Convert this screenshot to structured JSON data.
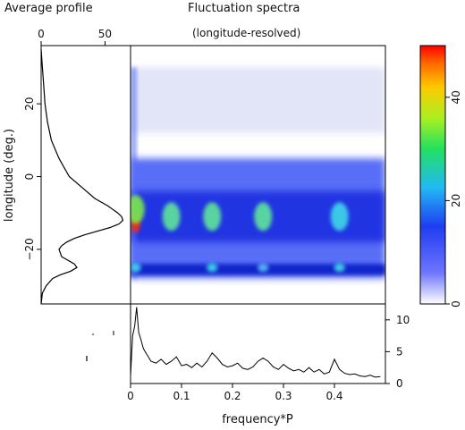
{
  "titles": {
    "profile_panel": "Average profile",
    "spectra_panel": "Fluctuation spectra",
    "spectra_subtitle": "(longitude-resolved)"
  },
  "chart_data": [
    {
      "type": "line",
      "name": "average-profile",
      "orientation": "vertical",
      "title": "Average profile",
      "xlabel": "",
      "ylabel": "longitude (deg.)",
      "xlim": [
        0,
        70
      ],
      "ylim": [
        -35,
        36
      ],
      "x_ticks": [
        "0",
        "50"
      ],
      "y_ticks": [
        "20",
        "0",
        "−20"
      ],
      "x_tick_values": [
        0,
        50
      ],
      "y_tick_values": [
        20,
        0,
        -20
      ],
      "points": {
        "longitude": [
          35,
          30,
          25,
          20,
          15,
          10,
          5,
          0,
          -3,
          -6,
          -8,
          -10,
          -11,
          -12,
          -13,
          -14,
          -15,
          -16,
          -17,
          -18,
          -19,
          -20,
          -22,
          -24,
          -25,
          -26,
          -27,
          -28,
          -30,
          -32,
          -35
        ],
        "intensity": [
          0,
          1,
          2,
          3,
          5,
          8,
          14,
          22,
          32,
          42,
          52,
          60,
          63,
          64,
          61,
          54,
          44,
          34,
          26,
          20,
          16,
          14,
          16,
          26,
          28,
          23,
          15,
          9,
          4,
          1,
          0
        ]
      }
    },
    {
      "type": "heatmap",
      "name": "fluctuation-spectra",
      "title": "Fluctuation spectra",
      "subtitle": "(longitude-resolved)",
      "xlabel": "frequency*P",
      "ylabel": "longitude (deg.)",
      "xlim": [
        0,
        0.5
      ],
      "ylim": [
        -35,
        36
      ],
      "colorbar": {
        "min": 0,
        "max": 50,
        "ticks": [
          "0",
          "20",
          "40"
        ],
        "tick_values": [
          0,
          20,
          40
        ]
      },
      "features": [
        {
          "f": 0.01,
          "lon": -13,
          "value": 50
        },
        {
          "f": 0.01,
          "lon": -9,
          "value": 30
        },
        {
          "f": 0.08,
          "lon": -11,
          "value": 22
        },
        {
          "f": 0.16,
          "lon": -11,
          "value": 22
        },
        {
          "f": 0.26,
          "lon": -11,
          "value": 24
        },
        {
          "f": 0.41,
          "lon": -11,
          "value": 18
        },
        {
          "f": 0.01,
          "lon": -25,
          "value": 18
        },
        {
          "f": 0.16,
          "lon": -25,
          "value": 15
        },
        {
          "f": 0.26,
          "lon": -25,
          "value": 14
        },
        {
          "f": 0.41,
          "lon": -25,
          "value": 15
        }
      ],
      "band_lat_min": -28,
      "band_lat_max": 5
    },
    {
      "type": "line",
      "name": "integrated-spectrum",
      "xlabel": "frequency*P",
      "ylabel": "",
      "xlim": [
        0,
        0.5
      ],
      "ylim": [
        0,
        12.5
      ],
      "x_ticks": [
        "0",
        "0.1",
        "0.2",
        "0.3",
        "0.4"
      ],
      "x_tick_values": [
        0,
        0.1,
        0.2,
        0.3,
        0.4
      ],
      "y_ticks": [
        "0",
        "5",
        "10"
      ],
      "y_tick_values": [
        0,
        5,
        10
      ],
      "x": [
        0.0,
        0.004,
        0.008,
        0.012,
        0.016,
        0.02,
        0.025,
        0.03,
        0.035,
        0.04,
        0.05,
        0.06,
        0.07,
        0.08,
        0.09,
        0.1,
        0.11,
        0.12,
        0.13,
        0.14,
        0.15,
        0.16,
        0.17,
        0.18,
        0.19,
        0.2,
        0.21,
        0.22,
        0.23,
        0.24,
        0.25,
        0.26,
        0.27,
        0.28,
        0.29,
        0.3,
        0.31,
        0.32,
        0.33,
        0.34,
        0.35,
        0.36,
        0.37,
        0.38,
        0.39,
        0.4,
        0.41,
        0.42,
        0.43,
        0.44,
        0.45,
        0.46,
        0.47,
        0.48,
        0.49
      ],
      "values": [
        1.2,
        7.5,
        9.0,
        12.0,
        8.0,
        7.0,
        5.5,
        4.8,
        4.2,
        3.5,
        3.2,
        3.8,
        3.0,
        3.5,
        4.2,
        2.8,
        3.0,
        2.5,
        3.2,
        2.6,
        3.5,
        4.8,
        4.0,
        3.0,
        2.6,
        2.8,
        3.2,
        2.4,
        2.2,
        2.6,
        3.5,
        4.0,
        3.5,
        2.6,
        2.2,
        3.0,
        2.4,
        2.0,
        2.2,
        1.8,
        2.5,
        1.8,
        2.2,
        1.5,
        1.8,
        3.8,
        2.2,
        1.6,
        1.4,
        1.5,
        1.2,
        1.1,
        1.3,
        1.0,
        1.1
      ]
    }
  ]
}
